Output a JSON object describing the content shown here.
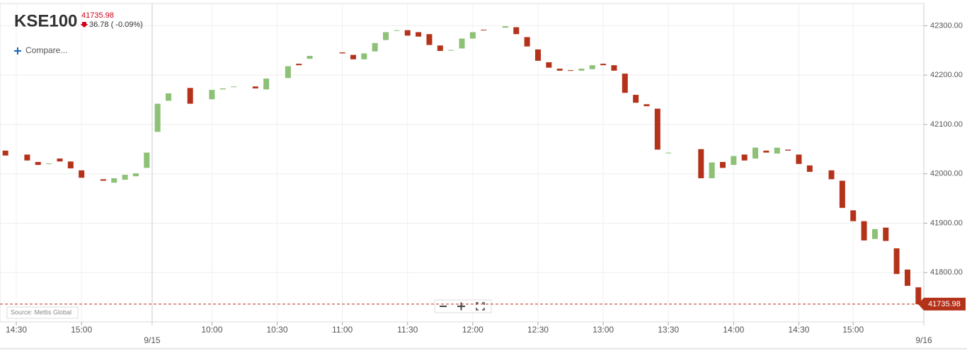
{
  "header": {
    "symbol": "KSE100",
    "change": "36.78 ( -0.09%)",
    "compare": "Compare...",
    "source": "Source: Mettis Global"
  },
  "chart_data": {
    "type": "candlestick",
    "categories": [
      null,
      "14:30",
      null,
      null,
      null,
      null,
      null,
      "15:00",
      null,
      null,
      null,
      null,
      null,
      null,
      null,
      null,
      null,
      null,
      null,
      "10:00",
      null,
      null,
      null,
      null,
      null,
      "10:30",
      null,
      null,
      null,
      null,
      null,
      "11:00",
      null,
      null,
      null,
      null,
      null,
      "11:30",
      null,
      null,
      null,
      null,
      null,
      "12:00",
      null,
      null,
      null,
      null,
      null,
      "12:30",
      null,
      null,
      null,
      null,
      null,
      "13:00",
      null,
      null,
      null,
      null,
      null,
      "13:30",
      null,
      null,
      null,
      null,
      null,
      "14:00",
      null,
      null,
      null,
      null,
      null,
      "14:30",
      null,
      null,
      null,
      null,
      "15:00",
      null,
      null,
      null,
      null,
      null,
      null
    ],
    "dates": [
      null,
      null,
      null,
      null,
      null,
      null,
      null,
      null,
      null,
      null,
      null,
      null,
      null,
      "9/15",
      null,
      null,
      null,
      null,
      null,
      null,
      null,
      null,
      null,
      null,
      null,
      null,
      null,
      null,
      null,
      null,
      null,
      null,
      null,
      null,
      null,
      null,
      null,
      null,
      null,
      null,
      null,
      null,
      null,
      null,
      null,
      null,
      null,
      null,
      null,
      null,
      null,
      null,
      null,
      null,
      null,
      null,
      null,
      null,
      null,
      null,
      null,
      null,
      null,
      null,
      null,
      null,
      null,
      null,
      null,
      null,
      null,
      null,
      null,
      null,
      null,
      null,
      null,
      null,
      null,
      null,
      null,
      null,
      null,
      null,
      "9/16"
    ],
    "open": [
      42047,
      null,
      42039,
      42024,
      42020,
      42031,
      42025,
      42007,
      null,
      41989,
      41982,
      41988,
      41995,
      42012,
      42085,
      42148,
      null,
      42174,
      null,
      42151,
      42171,
      42176,
      null,
      42177,
      42171,
      null,
      42194,
      42223,
      42233,
      null,
      null,
      42246,
      42241,
      42232,
      42248,
      42271,
      42290,
      42291,
      42287,
      42283,
      42260,
      42250,
      42254,
      42274,
      42292,
      null,
      42296,
      42297,
      42277,
      42252,
      42226,
      42213,
      42210,
      42209,
      42212,
      42223,
      42220,
      42203,
      42160,
      42141,
      42132,
      42042,
      null,
      null,
      42050,
      41991,
      42024,
      42018,
      42039,
      42031,
      42047,
      42041,
      42049,
      42039,
      42017,
      null,
      42007,
      41986,
      41926,
      41904,
      41868,
      41891,
      41849,
      41806,
      41770
    ],
    "close": [
      42037,
      null,
      42027,
      42018,
      42021,
      42025,
      42011,
      41992,
      null,
      41986,
      41991,
      41998,
      42001,
      42043,
      42142,
      42163,
      null,
      42142,
      null,
      42170,
      42173,
      42177,
      null,
      42173,
      42193,
      null,
      42218,
      42220,
      42239,
      null,
      null,
      42244,
      42232,
      42244,
      42265,
      42287,
      42291,
      42280,
      42278,
      42261,
      42249,
      42251,
      42274,
      42287,
      42291,
      null,
      42299,
      42283,
      42258,
      42229,
      42215,
      42209,
      42209,
      42213,
      42220,
      42220,
      42209,
      42164,
      42144,
      42137,
      42049,
      42043,
      null,
      null,
      41991,
      42023,
      42012,
      42036,
      42027,
      42053,
      42043,
      42053,
      42047,
      42020,
      42004,
      null,
      41989,
      41931,
      41904,
      41865,
      41888,
      41864,
      41797,
      41773,
      41735.98
    ],
    "up_color": "#8cc176",
    "down_color": "#b5321a",
    "ylim": [
      41700,
      42345
    ],
    "yticks": [
      {
        "value": 41800,
        "label": "41800.00"
      },
      {
        "value": 41900,
        "label": "41900.00"
      },
      {
        "value": 42000,
        "label": "42000.00"
      },
      {
        "value": 42100,
        "label": "42100.00"
      },
      {
        "value": 42200,
        "label": "42200.00"
      },
      {
        "value": 42300,
        "label": "42300.00"
      }
    ],
    "grid": true
  }
}
